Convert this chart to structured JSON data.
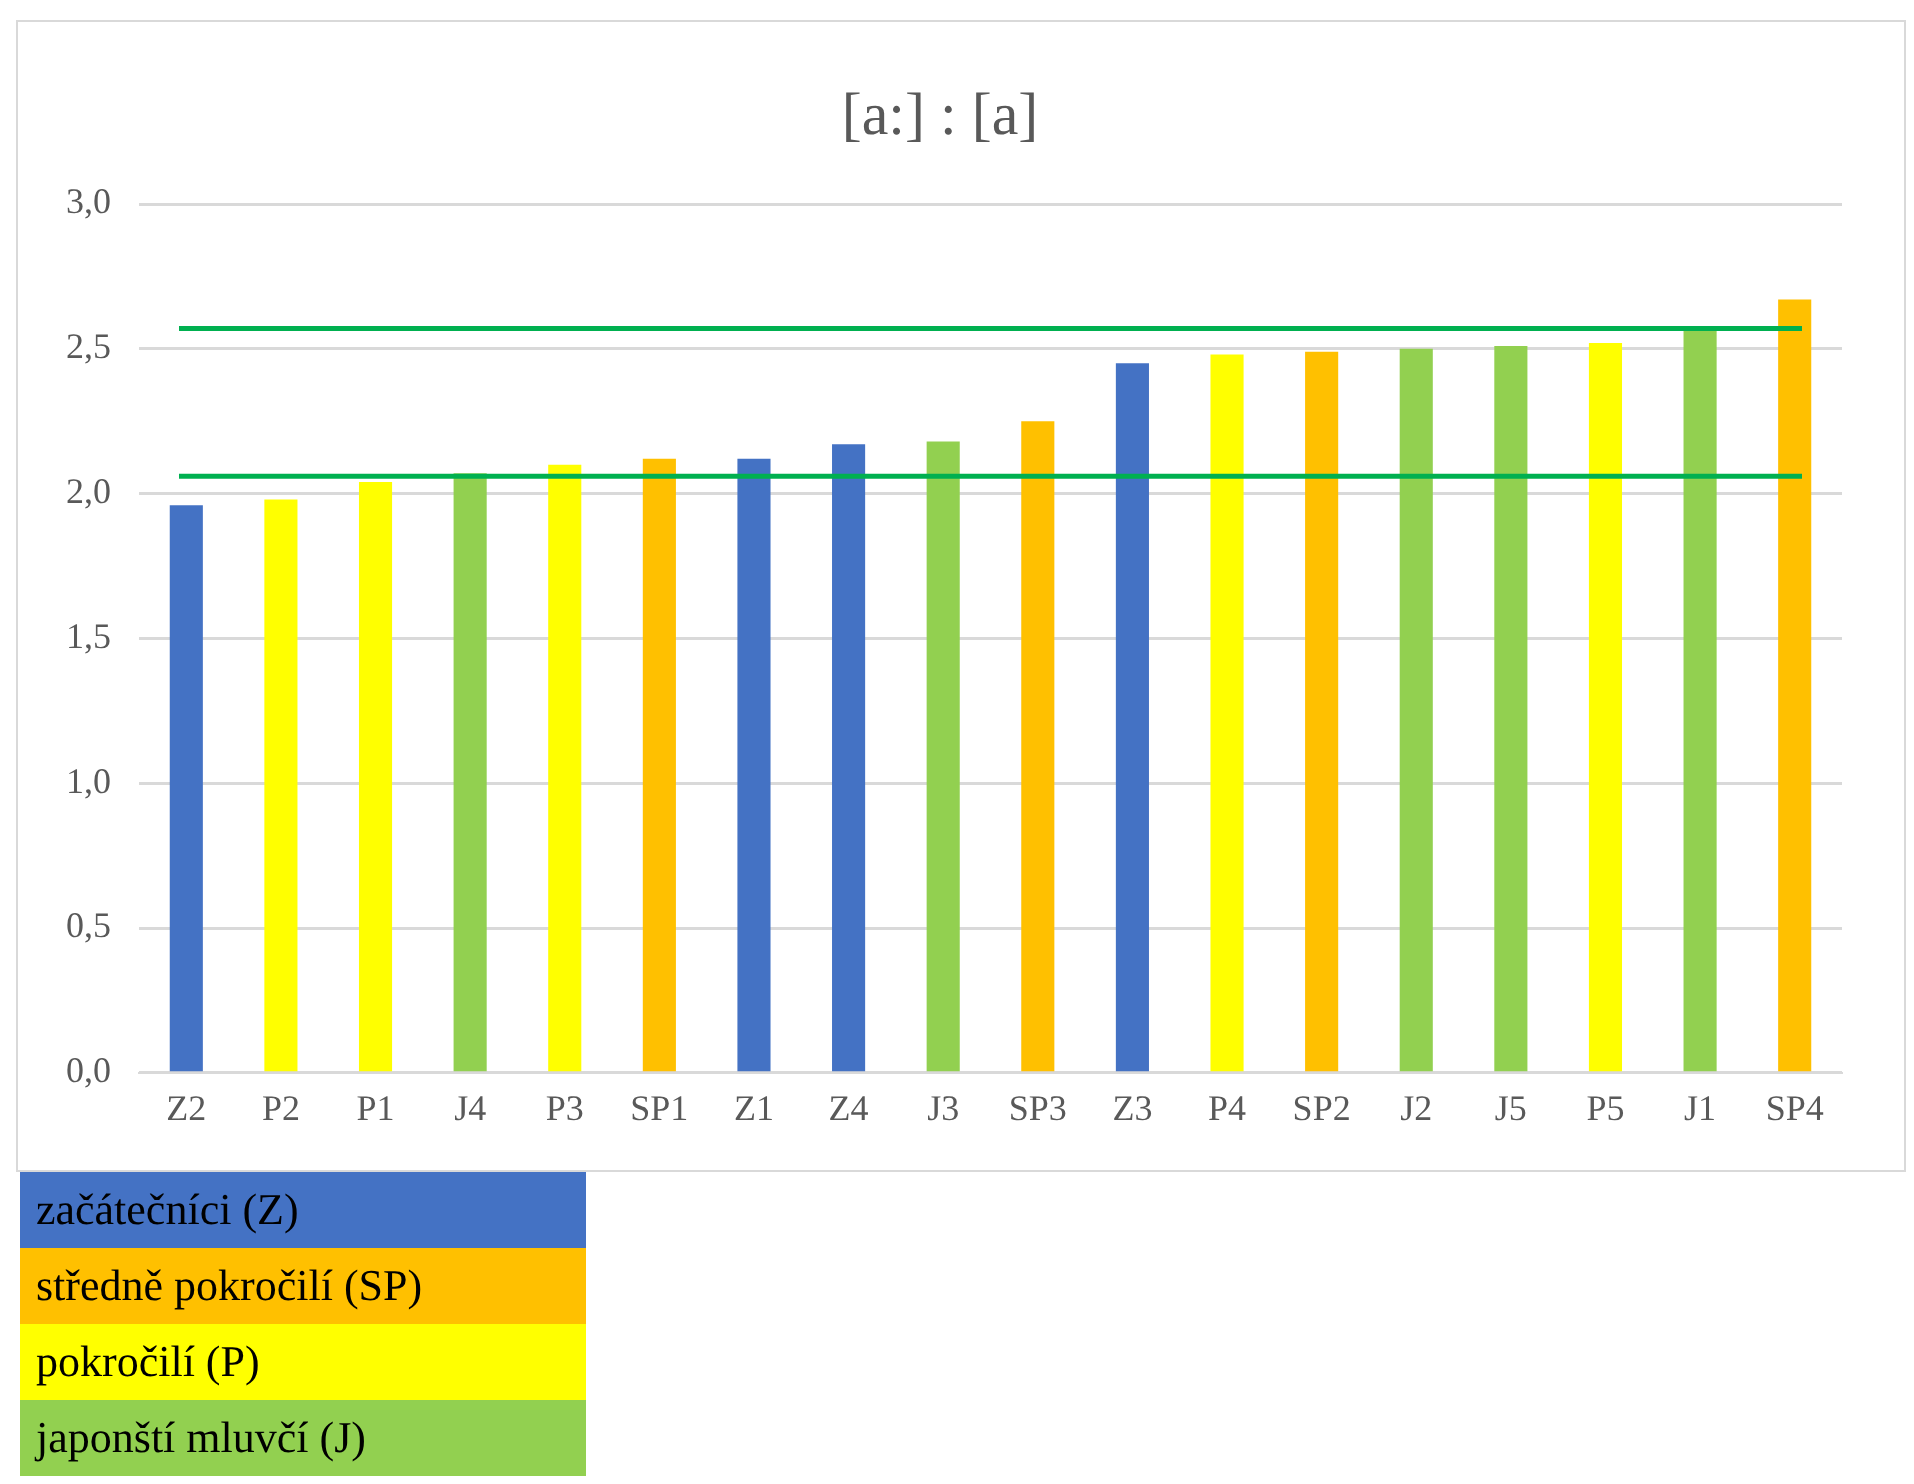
{
  "chart_data": {
    "type": "bar",
    "title": "[a:] : [a]",
    "categories": [
      "Z2",
      "P2",
      "P1",
      "J4",
      "P3",
      "SP1",
      "Z1",
      "Z4",
      "J3",
      "SP3",
      "Z3",
      "P4",
      "SP2",
      "J2",
      "J5",
      "P5",
      "J1",
      "SP4"
    ],
    "series": [
      {
        "name": "začátečníci (Z)",
        "color": "#4472c4",
        "values": [
          1.96,
          null,
          null,
          null,
          null,
          null,
          2.12,
          2.17,
          null,
          null,
          2.45,
          null,
          null,
          null,
          null,
          null,
          null,
          null
        ]
      },
      {
        "name": "středně pokročilí (SP)",
        "color": "#ffc000",
        "values": [
          null,
          null,
          null,
          null,
          null,
          2.12,
          null,
          null,
          null,
          2.25,
          null,
          null,
          2.49,
          null,
          null,
          null,
          null,
          2.67
        ]
      },
      {
        "name": "pokročilí (P)",
        "color": "#ffff00",
        "values": [
          null,
          1.98,
          2.04,
          null,
          2.1,
          null,
          null,
          null,
          null,
          null,
          null,
          2.48,
          null,
          null,
          null,
          2.52,
          null,
          null
        ]
      },
      {
        "name": "japonští mluvčí (J)",
        "color": "#92d050",
        "values": [
          null,
          null,
          null,
          2.07,
          null,
          null,
          null,
          null,
          2.18,
          null,
          null,
          null,
          null,
          2.5,
          2.51,
          null,
          2.57,
          null
        ]
      }
    ],
    "ylim": [
      0,
      3
    ],
    "yticks": [
      {
        "value": 0,
        "label": "0,0"
      },
      {
        "value": 0.5,
        "label": "0,5"
      },
      {
        "value": 1,
        "label": "1,0"
      },
      {
        "value": 1.5,
        "label": "1,5"
      },
      {
        "value": 2,
        "label": "2,0"
      },
      {
        "value": 2.5,
        "label": "2,5"
      },
      {
        "value": 3,
        "label": "3,0"
      }
    ],
    "grid": "y",
    "legend": "bottom left",
    "ref_lines": [
      {
        "axis": "y",
        "value": 2.57,
        "color": "#00b050"
      },
      {
        "axis": "y",
        "value": 2.06,
        "color": "#00b050"
      }
    ]
  }
}
